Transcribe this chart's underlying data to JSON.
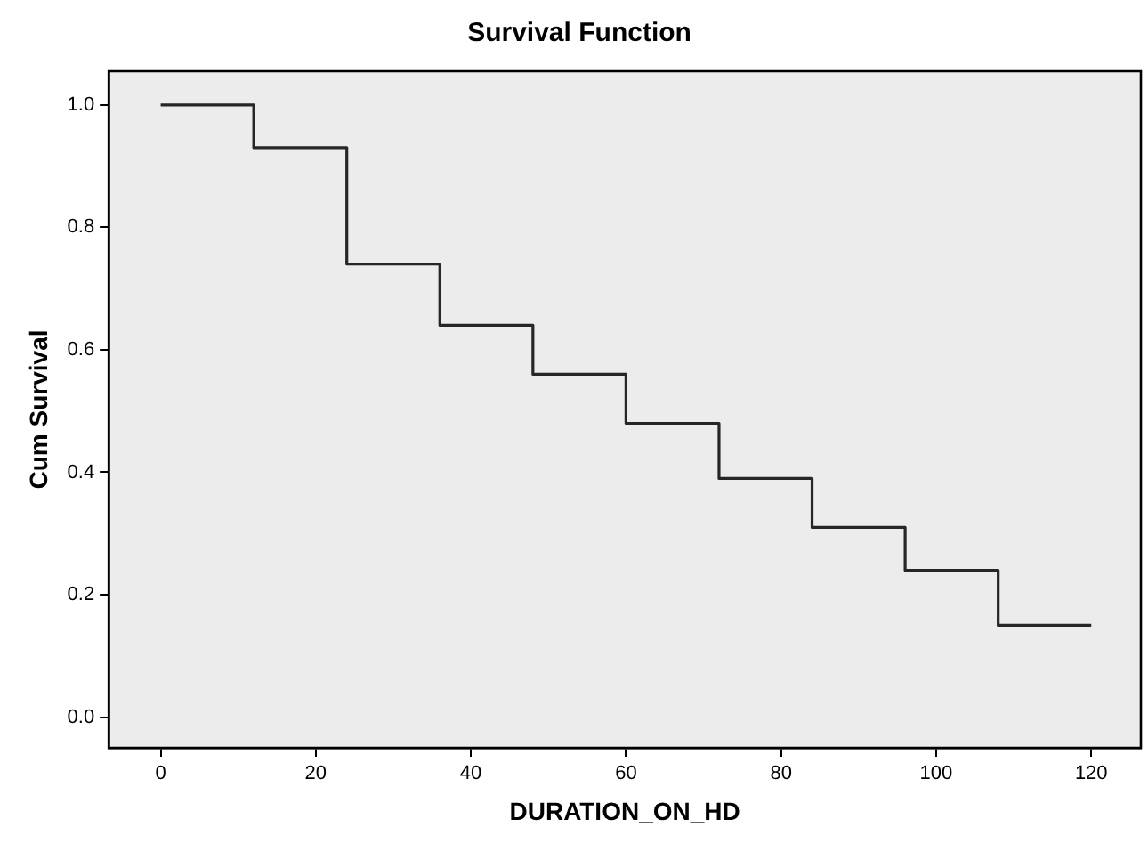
{
  "chart_data": {
    "type": "step",
    "title": "Survival Function",
    "xlabel": "DURATION_ON_HD",
    "ylabel": "Cum Survival",
    "x": [
      0,
      12,
      24,
      36,
      48,
      60,
      72,
      84,
      96,
      108,
      120
    ],
    "series": [
      {
        "color": "#262626",
        "values": [
          1.0,
          0.93,
          0.74,
          0.64,
          0.56,
          0.48,
          0.39,
          0.31,
          0.24,
          0.15,
          0.15
        ]
      }
    ],
    "xlim": [
      -6.7,
      126.4
    ],
    "xticks": [
      0,
      20,
      40,
      60,
      80,
      100,
      120
    ],
    "ylim": [
      -0.05,
      1.055
    ],
    "yticks": [
      {
        "value": 0,
        "label": "0.0"
      },
      {
        "value": 0.2,
        "label": "0.2"
      },
      {
        "value": 0.4,
        "label": "0.4"
      },
      {
        "value": 0.6,
        "label": "0.6"
      },
      {
        "value": 0.8,
        "label": "0.8"
      },
      {
        "value": 1,
        "label": "1.0"
      }
    ],
    "grid": false,
    "legend": false,
    "marker": "none",
    "line_style": "solid"
  }
}
